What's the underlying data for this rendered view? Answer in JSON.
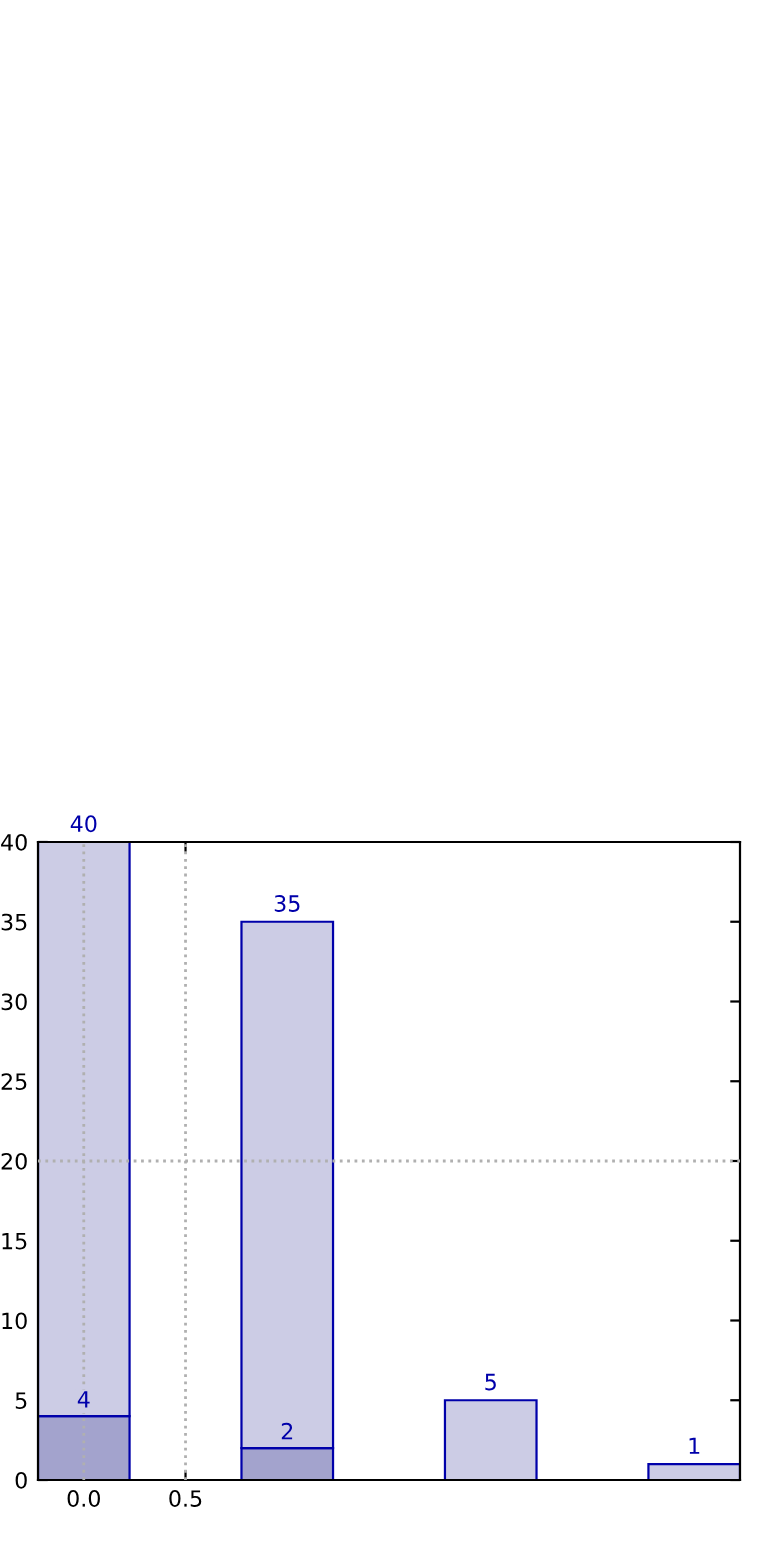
{
  "chart_data": {
    "type": "bar",
    "x": [
      0,
      1,
      2,
      3
    ],
    "stacked": true,
    "series": [
      {
        "color": "#a3a3cd",
        "values": [
          4,
          2,
          null,
          null
        ],
        "value_labels": [
          "4",
          "2",
          null,
          null
        ]
      },
      {
        "color": "#ccccE5",
        "values": [
          36,
          33,
          5,
          1
        ]
      }
    ],
    "totals": [
      "40",
      "35",
      "5",
      "1"
    ],
    "xlim": [
      -0.225,
      3.225
    ],
    "xticks": [
      {
        "value": 0,
        "label": "0.0"
      },
      {
        "value": 0.5,
        "label": "0.5"
      }
    ],
    "ylim": [
      0,
      40
    ],
    "yticks": [
      0,
      5,
      10,
      15,
      20,
      25,
      30,
      35,
      40
    ],
    "ref_lines": [
      {
        "axis": "y",
        "value": 20,
        "color": "#b0b0b0",
        "line_style": "dotted"
      },
      {
        "axis": "x",
        "value": 0,
        "color": "#b0b0b0",
        "line_style": "dotted"
      },
      {
        "axis": "x",
        "value": 0.5,
        "color": "#b0b0b0",
        "line_style": "dotted"
      }
    ]
  }
}
